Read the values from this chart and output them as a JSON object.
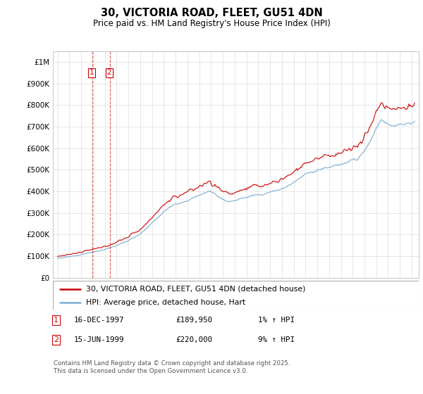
{
  "title": "30, VICTORIA ROAD, FLEET, GU51 4DN",
  "subtitle": "Price paid vs. HM Land Registry's House Price Index (HPI)",
  "legend_label_red": "30, VICTORIA ROAD, FLEET, GU51 4DN (detached house)",
  "legend_label_blue": "HPI: Average price, detached house, Hart",
  "transactions": [
    {
      "date": "16-DEC-1997",
      "price": 189950,
      "label": "1",
      "pct": "1% ↑ HPI"
    },
    {
      "date": "15-JUN-1999",
      "price": 220000,
      "label": "2",
      "pct": "9% ↑ HPI"
    }
  ],
  "footer": "Contains HM Land Registry data © Crown copyright and database right 2025.\nThis data is licensed under the Open Government Licence v3.0.",
  "red_color": "#cc0000",
  "blue_color": "#7aabcf",
  "vline_color": "#cc0000",
  "ylim": [
    0,
    1050000
  ],
  "yticks": [
    0,
    100000,
    200000,
    300000,
    400000,
    500000,
    600000,
    700000,
    800000,
    900000,
    1000000
  ],
  "ytick_labels": [
    "£0",
    "£100K",
    "£200K",
    "£300K",
    "£400K",
    "£500K",
    "£600K",
    "£700K",
    "£800K",
    "£900K",
    "£1M"
  ],
  "t1_year": 1997.958,
  "t2_year": 1999.458,
  "p1": 189950,
  "p2": 220000,
  "xmin": 1994.6,
  "xmax": 2025.6,
  "start_year": 1995,
  "end_year": 2025
}
